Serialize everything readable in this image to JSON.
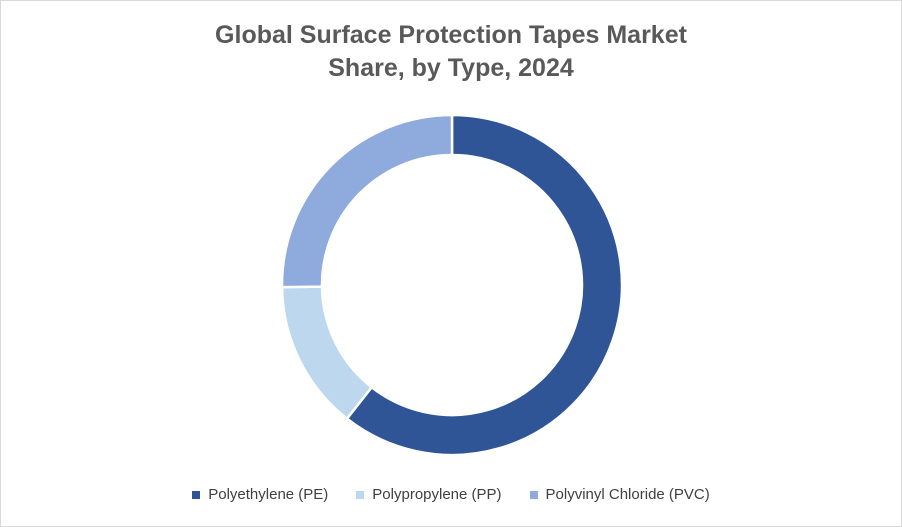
{
  "chart_data": {
    "type": "pie",
    "style": "doughnut",
    "title_lines": [
      "Global Surface Protection Tapes Market",
      "Share, by Type, 2024"
    ],
    "unit": "%",
    "categories": [
      "Polyethylene (PE)",
      "Polypropylene (PP)",
      "Polyvinyl Chloride (PVC)"
    ],
    "values": [
      60.6,
      14.2,
      25.2
    ],
    "colors": [
      "#2f5597",
      "#bdd7ee",
      "#8faadc"
    ],
    "legend_position": "bottom"
  }
}
